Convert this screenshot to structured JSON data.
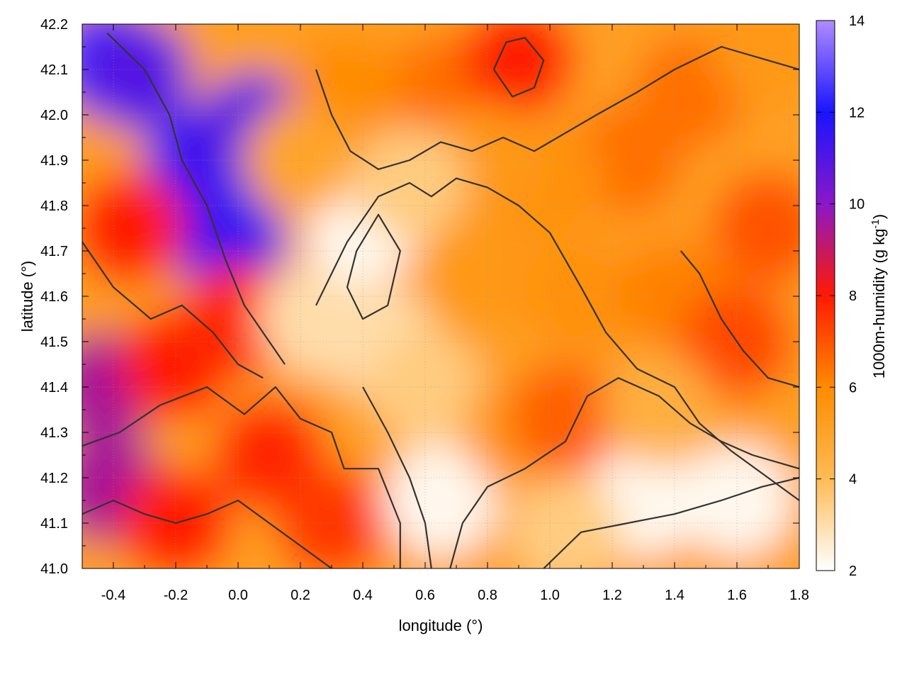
{
  "chart_data": {
    "type": "heatmap",
    "title": "",
    "xlabel": "longitude (°)",
    "ylabel": "latitude (°)",
    "colorbar_label_main": "1000m-humidity (g kg",
    "colorbar_label_sup": "-1",
    "colorbar_label_end": ")",
    "xlim": [
      -0.5,
      1.8
    ],
    "ylim": [
      41.0,
      42.2
    ],
    "xticks": [
      "-0.4",
      "-0.2",
      "0.0",
      "0.2",
      "0.4",
      "0.6",
      "0.8",
      "1.0",
      "1.2",
      "1.4",
      "1.6",
      "1.8"
    ],
    "xtick_values": [
      -0.4,
      -0.2,
      0.0,
      0.2,
      0.4,
      0.6,
      0.8,
      1.0,
      1.2,
      1.4,
      1.6,
      1.8
    ],
    "yticks": [
      "41.0",
      "41.1",
      "41.2",
      "41.3",
      "41.4",
      "41.5",
      "41.6",
      "41.7",
      "41.8",
      "41.9",
      "42.0",
      "42.1",
      "42.2"
    ],
    "ytick_values": [
      41.0,
      41.1,
      41.2,
      41.3,
      41.4,
      41.5,
      41.6,
      41.7,
      41.8,
      41.9,
      42.0,
      42.1,
      42.2
    ],
    "colorbar_ticks": [
      "2",
      "4",
      "6",
      "8",
      "10",
      "12",
      "14"
    ],
    "colorbar_values": [
      2,
      4,
      6,
      8,
      10,
      12,
      14
    ],
    "colorbar_range": [
      2,
      14
    ],
    "colormap": [
      {
        "value": 2,
        "color": "#ffffff"
      },
      {
        "value": 4,
        "color": "#ffbb55"
      },
      {
        "value": 6,
        "color": "#ff8c00"
      },
      {
        "value": 8,
        "color": "#ff1a00"
      },
      {
        "value": 10,
        "color": "#8a18c8"
      },
      {
        "value": 12,
        "color": "#1a14ff"
      },
      {
        "value": 14,
        "color": "#b08cff"
      }
    ],
    "grid": true,
    "contour_color": "#333333",
    "humidity_field": [
      {
        "lon": -0.42,
        "lat": 42.12,
        "value": 12.5
      },
      {
        "lon": -0.33,
        "lat": 42.09,
        "value": 11.0
      },
      {
        "lon": -0.12,
        "lat": 41.9,
        "value": 11.5
      },
      {
        "lon": -0.03,
        "lat": 41.72,
        "value": 11.5
      },
      {
        "lon": 0.05,
        "lat": 41.97,
        "value": 11.0
      },
      {
        "lon": -0.43,
        "lat": 41.4,
        "value": 9.5
      },
      {
        "lon": -0.42,
        "lat": 41.18,
        "value": 9.5
      },
      {
        "lon": -0.35,
        "lat": 41.75,
        "value": 8.0
      },
      {
        "lon": -0.2,
        "lat": 41.45,
        "value": 8.0
      },
      {
        "lon": -0.2,
        "lat": 41.1,
        "value": 8.0
      },
      {
        "lon": 0.1,
        "lat": 41.25,
        "value": 7.8
      },
      {
        "lon": 0.3,
        "lat": 41.1,
        "value": 7.5
      },
      {
        "lon": 0.0,
        "lat": 41.55,
        "value": 7.8
      },
      {
        "lon": 0.25,
        "lat": 41.55,
        "value": 3.0
      },
      {
        "lon": 0.4,
        "lat": 41.75,
        "value": 2.2
      },
      {
        "lon": 0.45,
        "lat": 41.5,
        "value": 3.0
      },
      {
        "lon": 0.65,
        "lat": 41.15,
        "value": 2.2
      },
      {
        "lon": 0.6,
        "lat": 41.4,
        "value": 3.5
      },
      {
        "lon": 1.3,
        "lat": 41.15,
        "value": 2.2
      },
      {
        "lon": 1.6,
        "lat": 41.15,
        "value": 2.2
      },
      {
        "lon": 1.05,
        "lat": 41.08,
        "value": 3.5
      },
      {
        "lon": 0.9,
        "lat": 41.3,
        "value": 5.5
      },
      {
        "lon": 1.05,
        "lat": 41.33,
        "value": 6.8
      },
      {
        "lon": 0.8,
        "lat": 41.65,
        "value": 5.5
      },
      {
        "lon": 1.1,
        "lat": 41.6,
        "value": 5.8
      },
      {
        "lon": 1.4,
        "lat": 41.6,
        "value": 6.2
      },
      {
        "lon": 1.6,
        "lat": 41.5,
        "value": 7.2
      },
      {
        "lon": 1.7,
        "lat": 41.75,
        "value": 7.0
      },
      {
        "lon": 1.25,
        "lat": 41.9,
        "value": 6.5
      },
      {
        "lon": 1.0,
        "lat": 41.85,
        "value": 5.8
      },
      {
        "lon": 0.65,
        "lat": 42.05,
        "value": 6.5
      },
      {
        "lon": 0.9,
        "lat": 42.12,
        "value": 8.0
      },
      {
        "lon": 0.35,
        "lat": 42.05,
        "value": 6.0
      },
      {
        "lon": 1.45,
        "lat": 42.05,
        "value": 6.5
      },
      {
        "lon": 1.7,
        "lat": 42.15,
        "value": 5.5
      },
      {
        "lon": 0.8,
        "lat": 41.9,
        "value": 5.5
      },
      {
        "lon": 0.55,
        "lat": 41.85,
        "value": 3.5
      },
      {
        "lon": 1.35,
        "lat": 41.35,
        "value": 4.5
      },
      {
        "lon": 0.2,
        "lat": 41.9,
        "value": 5.0
      }
    ],
    "contours": [
      {
        "level": "a",
        "points": [
          [
            -0.5,
            41.27
          ],
          [
            -0.38,
            41.3
          ],
          [
            -0.25,
            41.36
          ],
          [
            -0.1,
            41.4
          ],
          [
            0.02,
            41.34
          ],
          [
            0.12,
            41.4
          ],
          [
            0.2,
            41.33
          ],
          [
            0.3,
            41.3
          ],
          [
            0.34,
            41.22
          ],
          [
            0.45,
            41.22
          ],
          [
            0.52,
            41.1
          ],
          [
            0.52,
            41.0
          ]
        ]
      },
      {
        "level": "b",
        "points": [
          [
            0.25,
            41.58
          ],
          [
            0.35,
            41.72
          ],
          [
            0.45,
            41.82
          ],
          [
            0.55,
            41.85
          ],
          [
            0.62,
            41.82
          ],
          [
            0.7,
            41.86
          ],
          [
            0.8,
            41.84
          ],
          [
            0.9,
            41.8
          ],
          [
            1.0,
            41.74
          ],
          [
            1.1,
            41.62
          ],
          [
            1.18,
            41.52
          ],
          [
            1.28,
            41.44
          ],
          [
            1.4,
            41.4
          ],
          [
            1.48,
            41.32
          ],
          [
            1.58,
            41.26
          ],
          [
            1.7,
            41.2
          ],
          [
            1.8,
            41.15
          ]
        ]
      },
      {
        "level": "c",
        "points": [
          [
            0.38,
            41.7
          ],
          [
            0.45,
            41.78
          ],
          [
            0.52,
            41.7
          ],
          [
            0.48,
            41.58
          ],
          [
            0.4,
            41.55
          ],
          [
            0.35,
            41.62
          ],
          [
            0.38,
            41.7
          ]
        ]
      },
      {
        "level": "d",
        "points": [
          [
            0.68,
            41.0
          ],
          [
            0.72,
            41.1
          ],
          [
            0.8,
            41.18
          ],
          [
            0.92,
            41.22
          ],
          [
            1.05,
            41.28
          ],
          [
            1.12,
            41.38
          ],
          [
            1.22,
            41.42
          ],
          [
            1.35,
            41.38
          ],
          [
            1.45,
            41.32
          ],
          [
            1.55,
            41.28
          ],
          [
            1.65,
            41.25
          ],
          [
            1.8,
            41.22
          ]
        ]
      },
      {
        "level": "e",
        "points": [
          [
            0.98,
            41.0
          ],
          [
            1.1,
            41.08
          ],
          [
            1.25,
            41.1
          ],
          [
            1.4,
            41.12
          ],
          [
            1.55,
            41.15
          ],
          [
            1.68,
            41.18
          ],
          [
            1.8,
            41.2
          ]
        ]
      },
      {
        "level": "f",
        "points": [
          [
            -0.42,
            42.18
          ],
          [
            -0.3,
            42.1
          ],
          [
            -0.22,
            42.0
          ],
          [
            -0.18,
            41.9
          ],
          [
            -0.1,
            41.8
          ],
          [
            -0.04,
            41.68
          ],
          [
            0.02,
            41.58
          ],
          [
            0.1,
            41.5
          ],
          [
            0.15,
            41.45
          ]
        ]
      },
      {
        "level": "g",
        "points": [
          [
            0.25,
            42.1
          ],
          [
            0.3,
            42.0
          ],
          [
            0.36,
            41.92
          ],
          [
            0.45,
            41.88
          ],
          [
            0.55,
            41.9
          ],
          [
            0.65,
            41.94
          ],
          [
            0.75,
            41.92
          ],
          [
            0.85,
            41.95
          ],
          [
            0.95,
            41.92
          ],
          [
            1.05,
            41.96
          ],
          [
            1.15,
            42.0
          ],
          [
            1.28,
            42.05
          ],
          [
            1.4,
            42.1
          ],
          [
            1.55,
            42.15
          ],
          [
            1.7,
            42.12
          ],
          [
            1.8,
            42.1
          ]
        ]
      },
      {
        "level": "h",
        "points": [
          [
            0.82,
            42.1
          ],
          [
            0.86,
            42.16
          ],
          [
            0.92,
            42.17
          ],
          [
            0.98,
            42.12
          ],
          [
            0.95,
            42.06
          ],
          [
            0.88,
            42.04
          ],
          [
            0.82,
            42.1
          ]
        ]
      },
      {
        "level": "i",
        "points": [
          [
            -0.5,
            41.72
          ],
          [
            -0.4,
            41.62
          ],
          [
            -0.28,
            41.55
          ],
          [
            -0.18,
            41.58
          ],
          [
            -0.08,
            41.52
          ],
          [
            0.0,
            41.45
          ],
          [
            0.08,
            41.42
          ]
        ]
      },
      {
        "level": "j",
        "points": [
          [
            -0.5,
            41.12
          ],
          [
            -0.4,
            41.15
          ],
          [
            -0.3,
            41.12
          ],
          [
            -0.2,
            41.1
          ],
          [
            -0.1,
            41.12
          ],
          [
            0.0,
            41.15
          ],
          [
            0.1,
            41.1
          ],
          [
            0.2,
            41.05
          ],
          [
            0.3,
            41.0
          ]
        ]
      },
      {
        "level": "k",
        "points": [
          [
            1.42,
            41.7
          ],
          [
            1.48,
            41.65
          ],
          [
            1.55,
            41.55
          ],
          [
            1.62,
            41.48
          ],
          [
            1.7,
            41.42
          ],
          [
            1.8,
            41.4
          ]
        ]
      },
      {
        "level": "l",
        "points": [
          [
            0.4,
            41.4
          ],
          [
            0.48,
            41.3
          ],
          [
            0.55,
            41.2
          ],
          [
            0.6,
            41.1
          ],
          [
            0.62,
            41.0
          ]
        ]
      }
    ]
  }
}
